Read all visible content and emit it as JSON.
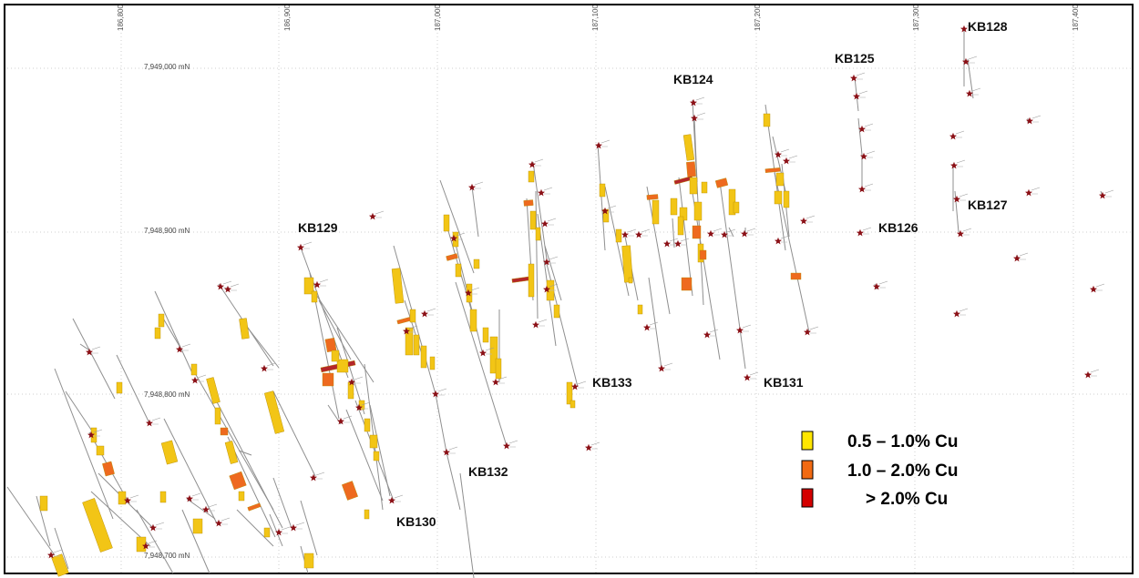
{
  "map": {
    "eastings": [
      "186,800",
      "186,900",
      "187,000",
      "187,100",
      "187,200",
      "187,300",
      "187,400"
    ],
    "northings": [
      "7,949,000 mN",
      "7,948,900 mN",
      "7,948,800 mN",
      "7,948,700 mN"
    ],
    "hole_labels": [
      "KB128",
      "KB125",
      "KB124",
      "KB127",
      "KB126",
      "KB129",
      "KB133",
      "KB131",
      "KB132",
      "KB130"
    ],
    "legend": [
      {
        "label": "0.5 – 1.0% Cu",
        "color": "#ffe600"
      },
      {
        "label": "1.0 – 2.0% Cu",
        "color": "#f26a12"
      },
      {
        "label": "> 2.0% Cu",
        "color": "#d40000"
      }
    ],
    "colors": {
      "low_grade": "#f2c516",
      "mid_grade": "#ee6a1f",
      "high_grade": "#b4262a",
      "collar_star": "#8b1016",
      "trace": "#8f8f8f",
      "grid": "#cfcfcf"
    }
  }
}
